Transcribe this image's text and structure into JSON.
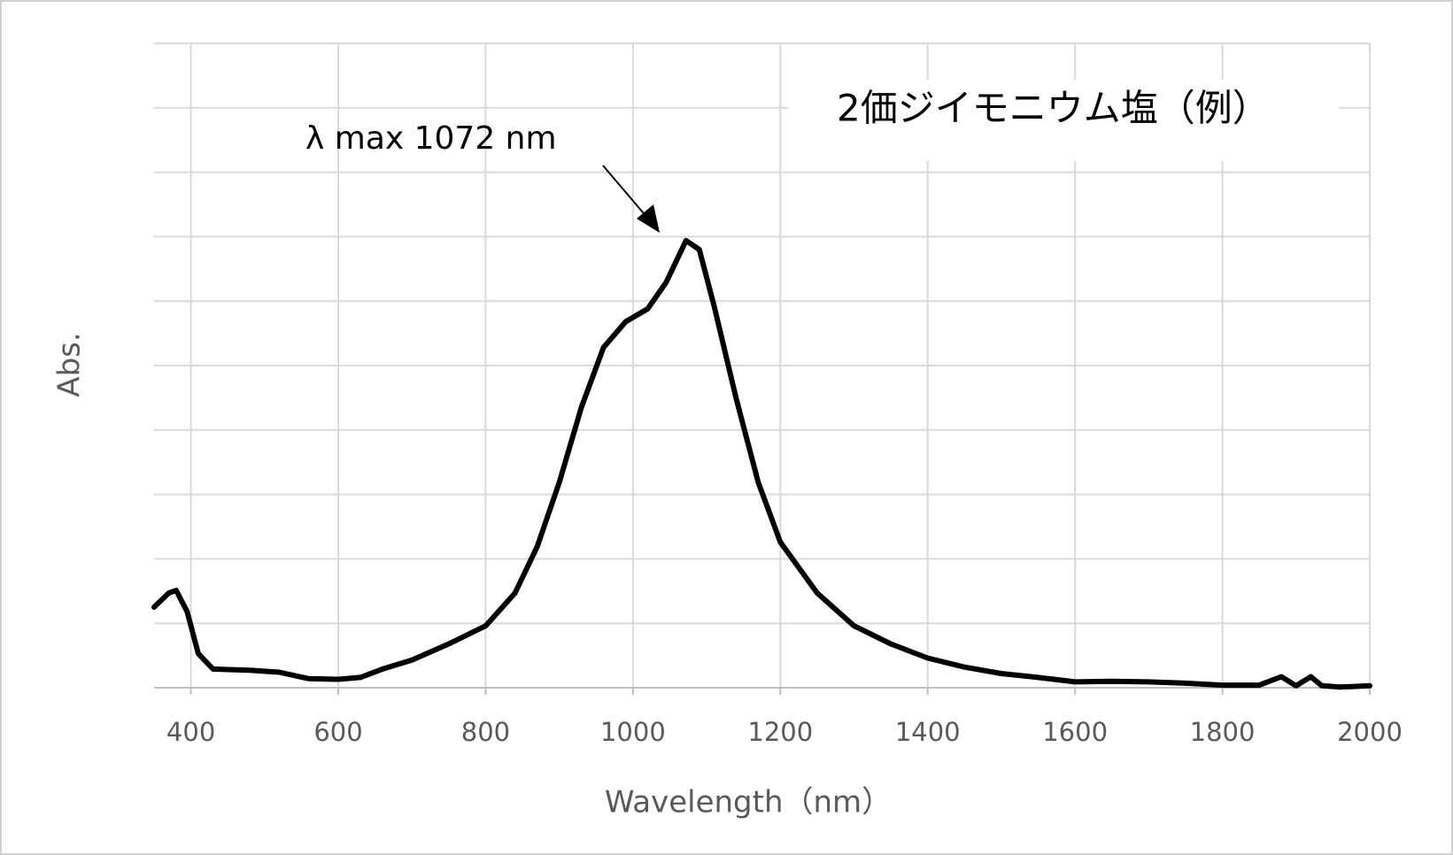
{
  "chart_data": {
    "type": "line",
    "x_label": "Wavelength（nm）",
    "y_label": "Abs.",
    "annotation": "λ max 1072 nm",
    "legend_label": "2価ジイモニウム塩（例）",
    "x": [
      350,
      370,
      380,
      395,
      410,
      430,
      480,
      520,
      560,
      600,
      630,
      660,
      700,
      750,
      800,
      840,
      870,
      900,
      930,
      960,
      990,
      1020,
      1045,
      1072,
      1090,
      1110,
      1140,
      1170,
      1200,
      1250,
      1300,
      1350,
      1400,
      1450,
      1500,
      1550,
      1600,
      1650,
      1700,
      1750,
      1800,
      1850,
      1880,
      1900,
      1920,
      1935,
      1960,
      2000
    ],
    "series": [
      {
        "color": "#000000",
        "values": [
          0.125,
          0.147,
          0.151,
          0.118,
          0.053,
          0.029,
          0.027,
          0.024,
          0.014,
          0.013,
          0.016,
          0.029,
          0.043,
          0.068,
          0.096,
          0.147,
          0.219,
          0.319,
          0.435,
          0.528,
          0.568,
          0.588,
          0.629,
          0.694,
          0.68,
          0.593,
          0.449,
          0.319,
          0.226,
          0.147,
          0.096,
          0.068,
          0.046,
          0.032,
          0.022,
          0.016,
          0.009,
          0.01,
          0.009,
          0.007,
          0.004,
          0.004,
          0.017,
          0.003,
          0.017,
          0.003,
          0.001,
          0.003
        ]
      }
    ],
    "xlim": [
      350,
      2000
    ],
    "xticks": [
      400,
      600,
      800,
      1000,
      1200,
      1400,
      1600,
      1800,
      2000
    ],
    "ylim": [
      0,
      1
    ],
    "grid": true
  }
}
